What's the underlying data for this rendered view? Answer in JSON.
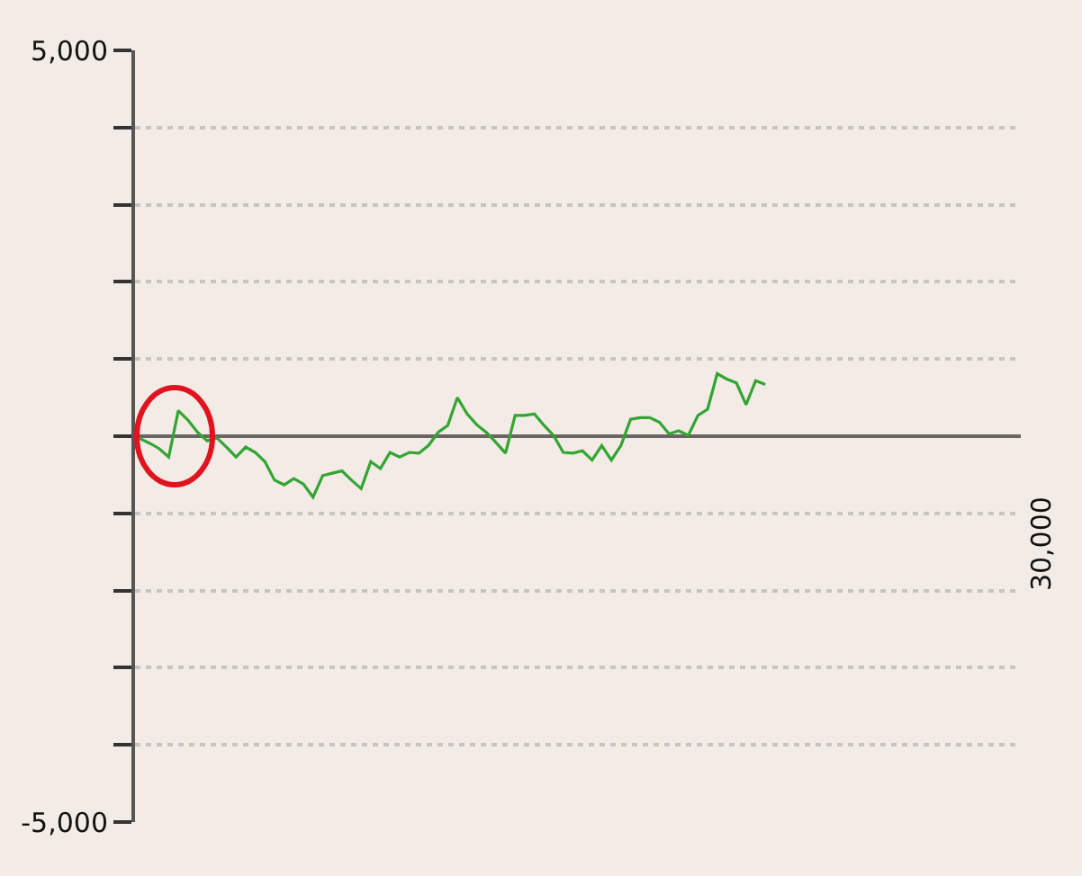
{
  "chart_data": {
    "type": "line",
    "categories": [
      null,
      null,
      null,
      null,
      null,
      null,
      null,
      null,
      null,
      null,
      null,
      null,
      null,
      null,
      null,
      null,
      null,
      null,
      null,
      null,
      null,
      null,
      null,
      null,
      null,
      null,
      null,
      null,
      null,
      null,
      null,
      null,
      null,
      null,
      null,
      null,
      null,
      null,
      null,
      null,
      null,
      null,
      null,
      null,
      null,
      null,
      null,
      null,
      null,
      null,
      null,
      null,
      null,
      null,
      null,
      null,
      null,
      null,
      null,
      null,
      null,
      null,
      null,
      null,
      null,
      null
    ],
    "series": [
      {
        "color": "#33a532",
        "values": [
          -30,
          -90,
          -160,
          -270,
          330,
          210,
          50,
          -60,
          -20,
          -140,
          -270,
          -140,
          -210,
          -330,
          -570,
          -630,
          -550,
          -620,
          -790,
          -510,
          -480,
          -450,
          -570,
          -680,
          -330,
          -420,
          -210,
          -270,
          -210,
          -220,
          -120,
          50,
          140,
          500,
          290,
          150,
          50,
          -80,
          -220,
          270,
          270,
          290,
          140,
          10,
          -210,
          -220,
          -190,
          -310,
          -120,
          -310,
          -120,
          220,
          240,
          240,
          180,
          30,
          70,
          10,
          270,
          350,
          810,
          740,
          690,
          410,
          720,
          670
        ]
      }
    ],
    "annotations": [
      "30,000"
    ],
    "ylim": [
      -5000,
      5000
    ],
    "yticks": [
      {
        "value": -5000,
        "label": "-5,000"
      },
      {
        "value": -4000,
        "label": null
      },
      {
        "value": -3000,
        "label": null
      },
      {
        "value": -2000,
        "label": null
      },
      {
        "value": -1000,
        "label": null
      },
      {
        "value": 0,
        "label": null
      },
      {
        "value": 1000,
        "label": null
      },
      {
        "value": 2000,
        "label": null
      },
      {
        "value": 3000,
        "label": null
      },
      {
        "value": 4000,
        "label": null
      },
      {
        "value": 5000,
        "label": "5,000"
      }
    ],
    "tick_labels": "y",
    "grid": "y",
    "marker": "none",
    "line_style": "solid"
  }
}
